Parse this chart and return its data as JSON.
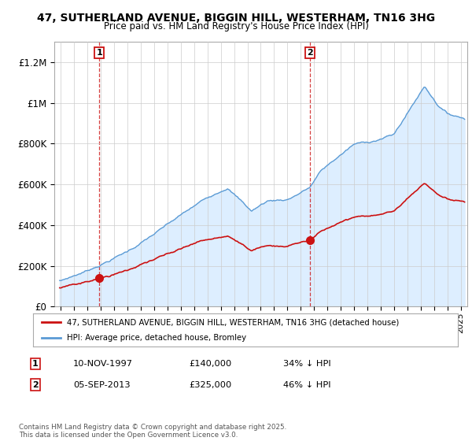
{
  "title": "47, SUTHERLAND AVENUE, BIGGIN HILL, WESTERHAM, TN16 3HG",
  "subtitle": "Price paid vs. HM Land Registry's House Price Index (HPI)",
  "ylabel_ticks": [
    "£0",
    "£200K",
    "£400K",
    "£600K",
    "£800K",
    "£1M",
    "£1.2M"
  ],
  "ytick_values": [
    0,
    200000,
    400000,
    600000,
    800000,
    1000000,
    1200000
  ],
  "ylim": [
    0,
    1300000
  ],
  "xlim_start": 1994.5,
  "xlim_end": 2025.5,
  "sale1_date": 1997.87,
  "sale1_price": 140000,
  "sale1_label": "1",
  "sale2_date": 2013.68,
  "sale2_price": 325000,
  "sale2_label": "2",
  "hpi_color": "#5b9bd5",
  "hpi_fill_color": "#ddeeff",
  "sale_color": "#cc1111",
  "legend_sale_label": "47, SUTHERLAND AVENUE, BIGGIN HILL, WESTERHAM, TN16 3HG (detached house)",
  "legend_hpi_label": "HPI: Average price, detached house, Bromley",
  "footnote": "Contains HM Land Registry data © Crown copyright and database right 2025.\nThis data is licensed under the Open Government Licence v3.0.",
  "background_color": "#ffffff",
  "grid_color": "#cccccc",
  "title_fontsize": 10,
  "subtitle_fontsize": 8.5
}
